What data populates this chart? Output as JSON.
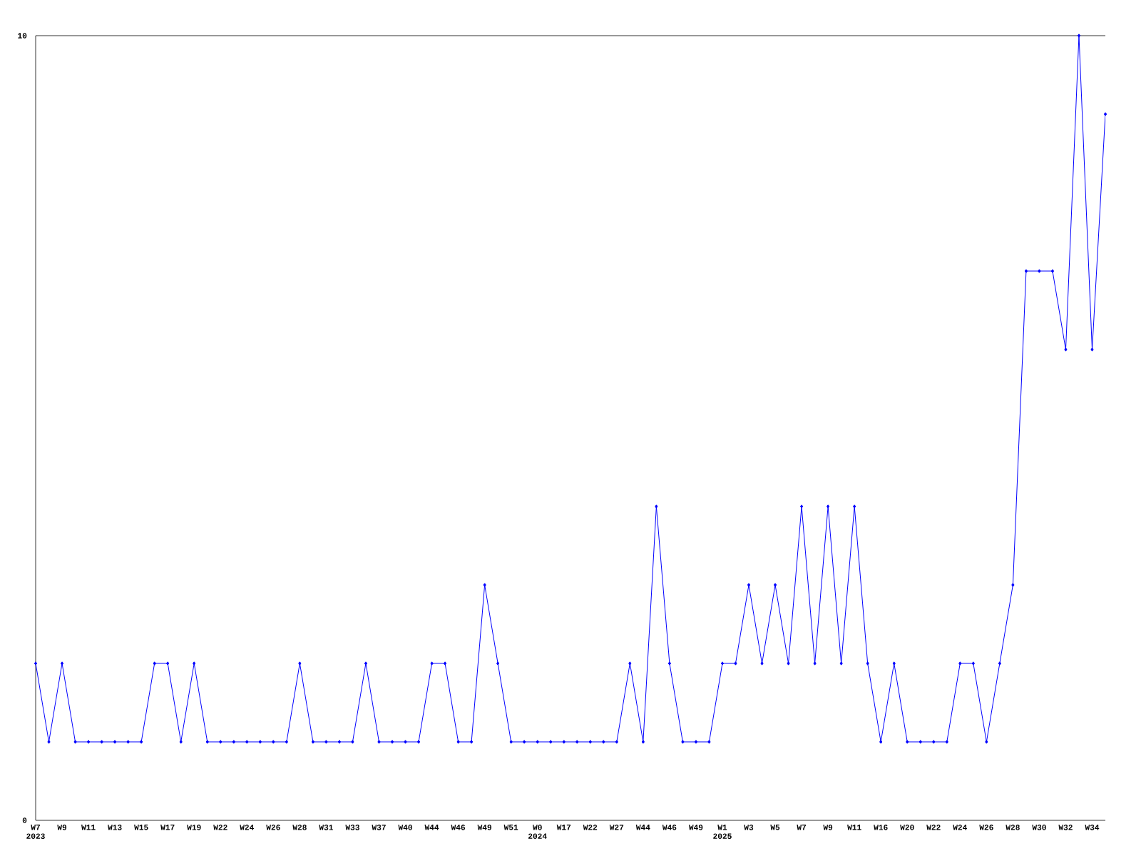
{
  "chart_data": {
    "type": "line",
    "categories": [
      "W7",
      null,
      "W9",
      null,
      "W11",
      null,
      "W13",
      null,
      "W15",
      null,
      "W17",
      null,
      "W19",
      null,
      "W22",
      null,
      "W24",
      null,
      "W26",
      null,
      "W28",
      null,
      "W31",
      null,
      "W33",
      null,
      "W37",
      null,
      "W40",
      null,
      "W44",
      null,
      "W46",
      null,
      "W49",
      null,
      "W51",
      null,
      "W0",
      null,
      "W17",
      null,
      "W22",
      null,
      "W27",
      null,
      "W44",
      null,
      "W46",
      null,
      "W49",
      null,
      "W1",
      null,
      "W3",
      null,
      "W5",
      null,
      "W7",
      null,
      "W9",
      null,
      "W11",
      null,
      "W16",
      null,
      "W20",
      null,
      "W22",
      null,
      "W24",
      null,
      "W26",
      null,
      "W28",
      null,
      "W30",
      null,
      "W32",
      null,
      "W34",
      null
    ],
    "series": [
      {
        "color": "#0000ff",
        "values": [
          2,
          1,
          2,
          1,
          1,
          1,
          1,
          1,
          1,
          2,
          2,
          1,
          2,
          1,
          1,
          1,
          1,
          1,
          1,
          1,
          2,
          1,
          1,
          1,
          1,
          2,
          1,
          1,
          1,
          1,
          2,
          2,
          1,
          1,
          3,
          2,
          1,
          1,
          1,
          1,
          1,
          1,
          1,
          1,
          1,
          2,
          1,
          4,
          2,
          1,
          1,
          1,
          2,
          2,
          3,
          2,
          3,
          2,
          4,
          2,
          4,
          2,
          4,
          2,
          1,
          2,
          1,
          1,
          1,
          1,
          2,
          2,
          1,
          2,
          3,
          7,
          7,
          7,
          6,
          10,
          6,
          9
        ]
      }
    ],
    "ylim": [
      0,
      10
    ],
    "yticks": [
      0,
      10
    ],
    "grid": false,
    "marker": "diamond",
    "line_style": "solid",
    "annotations": [
      "2023",
      "2024",
      "2025"
    ]
  }
}
